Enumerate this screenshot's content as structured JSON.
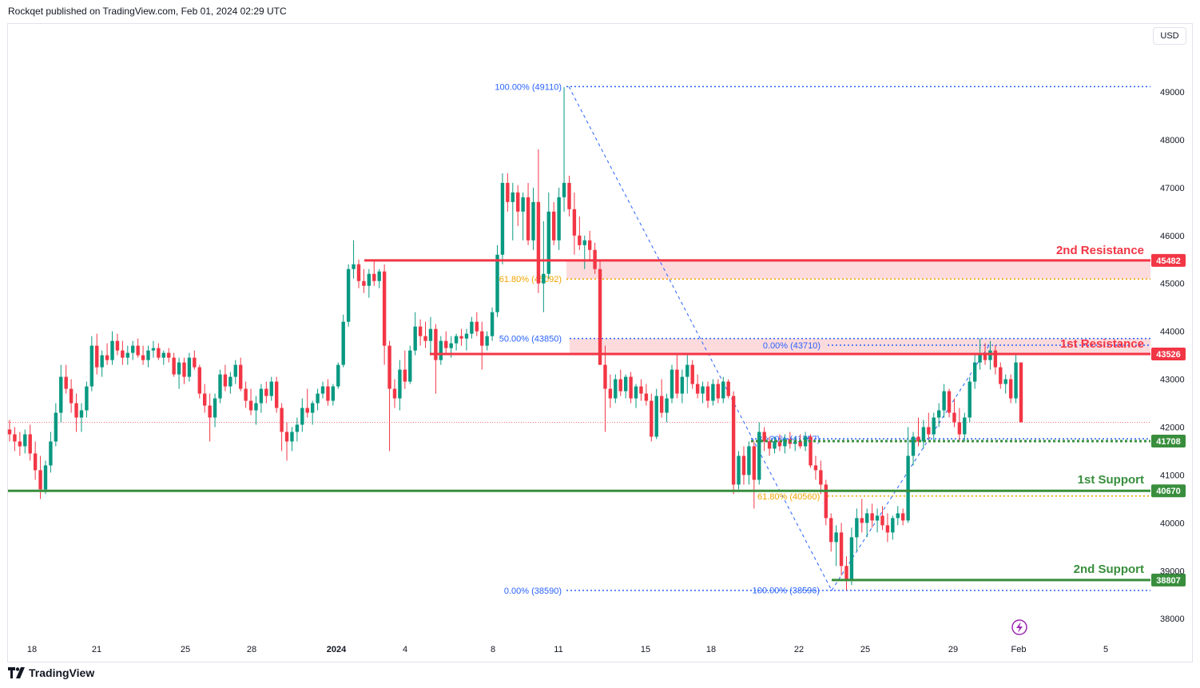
{
  "header": {
    "text": "Rockqet published on TradingView.com, Feb 01, 2024 02:29 UTC"
  },
  "currency": "USD",
  "footer": {
    "brand": "TradingView"
  },
  "chart_data": {
    "type": "candlestick",
    "symbol_currency": "USD",
    "ylim": [
      37700,
      49700
    ],
    "y_ticks": [
      38000,
      39000,
      40000,
      41000,
      42000,
      43000,
      44000,
      45000,
      46000,
      47000,
      48000,
      49000
    ],
    "x_ticks": [
      "18",
      "21",
      "25",
      "28",
      "2024",
      "4",
      "8",
      "11",
      "15",
      "18",
      "22",
      "25",
      "29",
      "Feb",
      "5"
    ],
    "colors": {
      "up": "#089981",
      "down": "#f23645",
      "resistance": "#f23645",
      "support": "#388e3c",
      "fib_blue": "#2962ff",
      "fib_orange": "#f0a400"
    },
    "levels": [
      {
        "label": "2nd Resistance",
        "price_label": "45482",
        "value": 45482,
        "kind": "resistance"
      },
      {
        "label": "1st Resistance",
        "price_label": "43526",
        "value": 43526,
        "kind": "resistance"
      },
      {
        "label": "",
        "price_label": "41708",
        "value": 41708,
        "kind": "support-dotted"
      },
      {
        "label": "1st Support",
        "price_label": "40670",
        "value": 40670,
        "kind": "support"
      },
      {
        "label": "2nd Support",
        "price_label": "38807",
        "value": 38807,
        "kind": "support"
      }
    ],
    "fib_labels": [
      {
        "text": "100.00% (49110)",
        "value": 49110,
        "color": "blue"
      },
      {
        "text": "61.80% (45092)",
        "value": 45092,
        "color": "orange"
      },
      {
        "text": "50.00% (43850)",
        "value": 43850,
        "color": "blue"
      },
      {
        "text": "0.00% (38590)",
        "value": 38590,
        "color": "blue"
      },
      {
        "text": "0.00% (43710)",
        "value": 43710,
        "color": "blue"
      },
      {
        "text": "38.20% (41757)",
        "value": 41757,
        "color": "blue"
      },
      {
        "text": "61.80% (40560)",
        "value": 40560,
        "color": "orange"
      },
      {
        "text": "100.00% (38596)",
        "value": 38596,
        "color": "blue"
      }
    ],
    "current_price": 42100,
    "candles": [
      [
        41950,
        42150,
        41700,
        41850
      ],
      [
        41850,
        42000,
        41500,
        41700
      ],
      [
        41700,
        41900,
        41400,
        41600
      ],
      [
        41600,
        41950,
        41450,
        41850
      ],
      [
        41850,
        42050,
        41300,
        41450
      ],
      [
        41450,
        41700,
        40900,
        41100
      ],
      [
        41100,
        41400,
        40500,
        40700
      ],
      [
        40700,
        41300,
        40600,
        41200
      ],
      [
        41200,
        41900,
        41050,
        41700
      ],
      [
        41700,
        42500,
        41600,
        42300
      ],
      [
        42300,
        43300,
        42100,
        43050
      ],
      [
        43050,
        43300,
        42700,
        42800
      ],
      [
        42800,
        43000,
        42300,
        42500
      ],
      [
        42500,
        42700,
        41900,
        42200
      ],
      [
        42200,
        42500,
        41900,
        42350
      ],
      [
        42350,
        42950,
        42200,
        42850
      ],
      [
        42850,
        43900,
        42750,
        43700
      ],
      [
        43700,
        43950,
        43100,
        43250
      ],
      [
        43250,
        43600,
        43050,
        43500
      ],
      [
        43500,
        43750,
        43300,
        43400
      ],
      [
        43400,
        44000,
        43300,
        43800
      ],
      [
        43800,
        43950,
        43500,
        43600
      ],
      [
        43600,
        43800,
        43300,
        43450
      ],
      [
        43450,
        43700,
        43300,
        43550
      ],
      [
        43550,
        43800,
        43400,
        43700
      ],
      [
        43700,
        43850,
        43450,
        43500
      ],
      [
        43500,
        43700,
        43300,
        43400
      ],
      [
        43400,
        43700,
        43250,
        43600
      ],
      [
        43600,
        43800,
        43450,
        43650
      ],
      [
        43650,
        43750,
        43400,
        43450
      ],
      [
        43450,
        43600,
        43300,
        43550
      ],
      [
        43550,
        43650,
        43350,
        43450
      ],
      [
        43450,
        43550,
        43050,
        43100
      ],
      [
        43100,
        43450,
        42800,
        43350
      ],
      [
        43350,
        43450,
        42900,
        43050
      ],
      [
        43050,
        43550,
        42950,
        43450
      ],
      [
        43450,
        43600,
        43200,
        43250
      ],
      [
        43250,
        43300,
        42600,
        42700
      ],
      [
        42700,
        42900,
        42300,
        42450
      ],
      [
        42450,
        42700,
        41700,
        42200
      ],
      [
        42200,
        42700,
        42000,
        42600
      ],
      [
        42600,
        43200,
        42500,
        43100
      ],
      [
        43100,
        43300,
        42750,
        42850
      ],
      [
        42850,
        43150,
        42700,
        43050
      ],
      [
        43050,
        43400,
        42900,
        43300
      ],
      [
        43300,
        43450,
        42750,
        42800
      ],
      [
        42800,
        42950,
        42400,
        42550
      ],
      [
        42550,
        42800,
        42250,
        42350
      ],
      [
        42350,
        42650,
        42050,
        42500
      ],
      [
        42500,
        42900,
        42300,
        42800
      ],
      [
        42800,
        42950,
        42500,
        42650
      ],
      [
        42650,
        43050,
        42550,
        42950
      ],
      [
        42950,
        43050,
        42300,
        42400
      ],
      [
        42400,
        42500,
        41500,
        41900
      ],
      [
        41900,
        42100,
        41300,
        41700
      ],
      [
        41700,
        42000,
        41500,
        41900
      ],
      [
        41900,
        42200,
        41700,
        42050
      ],
      [
        42050,
        42600,
        41900,
        42400
      ],
      [
        42400,
        42800,
        42200,
        42300
      ],
      [
        42300,
        42550,
        42050,
        42500
      ],
      [
        42500,
        42800,
        42350,
        42700
      ],
      [
        42700,
        42950,
        42600,
        42850
      ],
      [
        42850,
        43000,
        42450,
        42550
      ],
      [
        42550,
        42900,
        42450,
        42850
      ],
      [
        42850,
        43350,
        42800,
        43300
      ],
      [
        43300,
        44350,
        43250,
        44200
      ],
      [
        44200,
        45400,
        44100,
        45300
      ],
      [
        45300,
        45900,
        45100,
        45400
      ],
      [
        45400,
        45500,
        44900,
        45050
      ],
      [
        45050,
        45300,
        44800,
        44950
      ],
      [
        44950,
        45300,
        44700,
        45200
      ],
      [
        45200,
        45500,
        44950,
        45050
      ],
      [
        45050,
        45300,
        44900,
        45250
      ],
      [
        45250,
        45400,
        43300,
        43700
      ],
      [
        43700,
        43800,
        41500,
        42800
      ],
      [
        42800,
        43000,
        42400,
        42600
      ],
      [
        42600,
        43400,
        42350,
        43200
      ],
      [
        43200,
        43600,
        42800,
        42950
      ],
      [
        42950,
        43700,
        42900,
        43600
      ],
      [
        43600,
        44400,
        43500,
        44100
      ],
      [
        44100,
        44250,
        43700,
        43900
      ],
      [
        43900,
        44200,
        43650,
        43800
      ],
      [
        43800,
        44300,
        43500,
        44050
      ],
      [
        44050,
        44150,
        42700,
        43400
      ],
      [
        43400,
        43900,
        43300,
        43800
      ],
      [
        43800,
        44000,
        43550,
        43650
      ],
      [
        43650,
        43900,
        43450,
        43750
      ],
      [
        43750,
        43950,
        43600,
        43900
      ],
      [
        43900,
        44050,
        43700,
        43850
      ],
      [
        43850,
        44050,
        43600,
        43950
      ],
      [
        43950,
        44300,
        43850,
        44200
      ],
      [
        44200,
        44400,
        43900,
        44000
      ],
      [
        44000,
        44200,
        43200,
        43700
      ],
      [
        43700,
        44000,
        43600,
        43900
      ],
      [
        43900,
        44500,
        43800,
        44400
      ],
      [
        44400,
        45800,
        44300,
        45600
      ],
      [
        45600,
        47300,
        45400,
        47100
      ],
      [
        47100,
        47300,
        46500,
        46700
      ],
      [
        46700,
        47100,
        45900,
        46900
      ],
      [
        46900,
        47050,
        46200,
        46500
      ],
      [
        46500,
        46900,
        45900,
        46800
      ],
      [
        46800,
        47100,
        45800,
        45900
      ],
      [
        45900,
        47000,
        45700,
        46700
      ],
      [
        46700,
        47800,
        44800,
        45000
      ],
      [
        45000,
        46300,
        44400,
        45200
      ],
      [
        45200,
        46900,
        45100,
        46500
      ],
      [
        46500,
        46700,
        45800,
        45900
      ],
      [
        45900,
        47000,
        45700,
        46800
      ],
      [
        46800,
        49100,
        46500,
        47100
      ],
      [
        47100,
        47250,
        46400,
        46550
      ],
      [
        46550,
        46900,
        45600,
        46000
      ],
      [
        46000,
        46400,
        45700,
        45800
      ],
      [
        45800,
        46000,
        45300,
        45900
      ],
      [
        45900,
        46100,
        45500,
        45700
      ],
      [
        45700,
        45850,
        45200,
        45300
      ],
      [
        45300,
        45500,
        43300,
        43300
      ],
      [
        43300,
        43700,
        41900,
        42800
      ],
      [
        42800,
        43100,
        42400,
        42600
      ],
      [
        42600,
        43100,
        42500,
        43000
      ],
      [
        43000,
        43200,
        42650,
        42750
      ],
      [
        42750,
        43100,
        42600,
        43050
      ],
      [
        43050,
        43150,
        42500,
        42600
      ],
      [
        42600,
        42900,
        42400,
        42850
      ],
      [
        42850,
        43000,
        42550,
        42700
      ],
      [
        42700,
        42900,
        42450,
        42550
      ],
      [
        42550,
        42700,
        41700,
        41800
      ],
      [
        41800,
        42800,
        41750,
        42650
      ],
      [
        42650,
        43000,
        42200,
        42300
      ],
      [
        42300,
        42700,
        42100,
        42600
      ],
      [
        42600,
        43300,
        42500,
        43200
      ],
      [
        43200,
        43500,
        42600,
        42700
      ],
      [
        42700,
        43200,
        42500,
        43050
      ],
      [
        43050,
        43500,
        42700,
        43300
      ],
      [
        43300,
        43400,
        42800,
        42900
      ],
      [
        42900,
        43100,
        42600,
        42700
      ],
      [
        42700,
        42950,
        42500,
        42850
      ],
      [
        42850,
        42950,
        42400,
        42550
      ],
      [
        42550,
        43000,
        42450,
        42900
      ],
      [
        42900,
        43000,
        42500,
        42600
      ],
      [
        42600,
        43050,
        42500,
        42950
      ],
      [
        42950,
        43000,
        42600,
        42650
      ],
      [
        42650,
        42750,
        40600,
        40800
      ],
      [
        40800,
        41500,
        40700,
        41400
      ],
      [
        41400,
        41600,
        40800,
        41000
      ],
      [
        41000,
        41700,
        40800,
        41600
      ],
      [
        41600,
        41700,
        40300,
        40900
      ],
      [
        40900,
        42100,
        40800,
        41900
      ],
      [
        41900,
        42000,
        41500,
        41700
      ],
      [
        41700,
        41800,
        41400,
        41550
      ],
      [
        41550,
        41800,
        41450,
        41700
      ],
      [
        41700,
        41850,
        41500,
        41600
      ],
      [
        41600,
        41850,
        41450,
        41750
      ],
      [
        41750,
        41900,
        41550,
        41650
      ],
      [
        41650,
        41800,
        41500,
        41700
      ],
      [
        41700,
        41850,
        41550,
        41600
      ],
      [
        41600,
        41900,
        41500,
        41800
      ],
      [
        41800,
        41850,
        41150,
        41200
      ],
      [
        41200,
        41400,
        40900,
        41100
      ],
      [
        41100,
        41300,
        40600,
        40800
      ],
      [
        40800,
        40900,
        39950,
        40100
      ],
      [
        40100,
        40200,
        39400,
        39600
      ],
      [
        39600,
        39950,
        39100,
        39800
      ],
      [
        39800,
        40000,
        38900,
        39100
      ],
      [
        39100,
        39300,
        38590,
        38800
      ],
      [
        38800,
        39900,
        38700,
        39700
      ],
      [
        39700,
        40300,
        39400,
        40100
      ],
      [
        40100,
        40500,
        39800,
        40000
      ],
      [
        40000,
        40300,
        39700,
        40200
      ],
      [
        40200,
        40400,
        39900,
        40050
      ],
      [
        40050,
        40300,
        39800,
        40150
      ],
      [
        40150,
        40350,
        39850,
        39950
      ],
      [
        39950,
        40200,
        39600,
        39800
      ],
      [
        39800,
        40150,
        39650,
        40100
      ],
      [
        40100,
        40350,
        39950,
        40200
      ],
      [
        40200,
        40300,
        39950,
        40050
      ],
      [
        40050,
        42000,
        40000,
        41400
      ],
      [
        41400,
        41900,
        41200,
        41800
      ],
      [
        41800,
        42200,
        41600,
        41700
      ],
      [
        41700,
        42150,
        41550,
        42000
      ],
      [
        42000,
        42300,
        41750,
        41850
      ],
      [
        41850,
        42300,
        41700,
        42200
      ],
      [
        42200,
        42500,
        42000,
        42350
      ],
      [
        42350,
        42900,
        42200,
        42750
      ],
      [
        42750,
        42800,
        42200,
        42300
      ],
      [
        42300,
        42600,
        42000,
        42100
      ],
      [
        42100,
        42400,
        41700,
        41850
      ],
      [
        41850,
        42300,
        41700,
        42200
      ],
      [
        42200,
        43050,
        42100,
        42950
      ],
      [
        42950,
        43500,
        42800,
        43350
      ],
      [
        43350,
        43850,
        43200,
        43550
      ],
      [
        43550,
        43750,
        43300,
        43400
      ],
      [
        43400,
        43800,
        43200,
        43600
      ],
      [
        43600,
        43710,
        43100,
        43250
      ],
      [
        43250,
        43350,
        42800,
        42900
      ],
      [
        42900,
        43100,
        42700,
        43000
      ],
      [
        43000,
        43100,
        42500,
        42600
      ],
      [
        42600,
        43500,
        42500,
        43350
      ],
      [
        43350,
        43350,
        42100,
        42100
      ]
    ]
  }
}
